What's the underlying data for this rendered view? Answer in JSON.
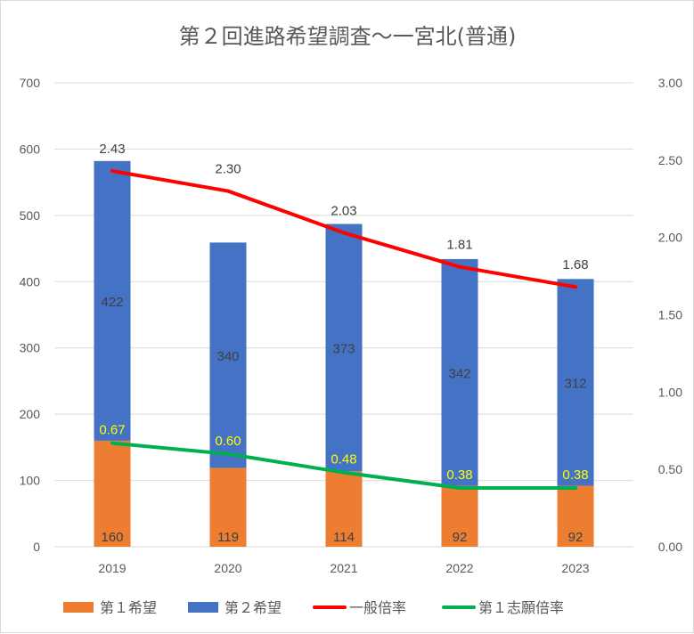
{
  "chart_data": {
    "type": "bar+line",
    "title": "第２回進路希望調査～一宮北(普通)",
    "categories": [
      "2019",
      "2020",
      "2021",
      "2022",
      "2023"
    ],
    "stacked_bars": [
      {
        "name": "第１希望",
        "color": "#ed7d31",
        "values": [
          160,
          119,
          114,
          92,
          92
        ]
      },
      {
        "name": "第２希望",
        "color": "#4472c4",
        "values": [
          422,
          340,
          373,
          342,
          312
        ]
      }
    ],
    "lines": [
      {
        "name": "一般倍率",
        "color": "#ff0000",
        "axis": "right",
        "values": [
          2.43,
          2.3,
          2.03,
          1.81,
          1.68
        ],
        "label_color": "#404040"
      },
      {
        "name": "第１志願倍率",
        "color": "#00b050",
        "axis": "right",
        "values": [
          0.67,
          0.6,
          0.48,
          0.38,
          0.38
        ],
        "label_color": "#ffff00"
      }
    ],
    "y_left": {
      "min": 0,
      "max": 700,
      "ticks": [
        "0",
        "100",
        "200",
        "300",
        "400",
        "500",
        "600",
        "700"
      ]
    },
    "y_right": {
      "min": 0,
      "max": 3,
      "ticks": [
        "0.00",
        "0.50",
        "1.00",
        "1.50",
        "2.00",
        "2.50",
        "3.00"
      ]
    },
    "grid": true,
    "legend": "bottom"
  }
}
